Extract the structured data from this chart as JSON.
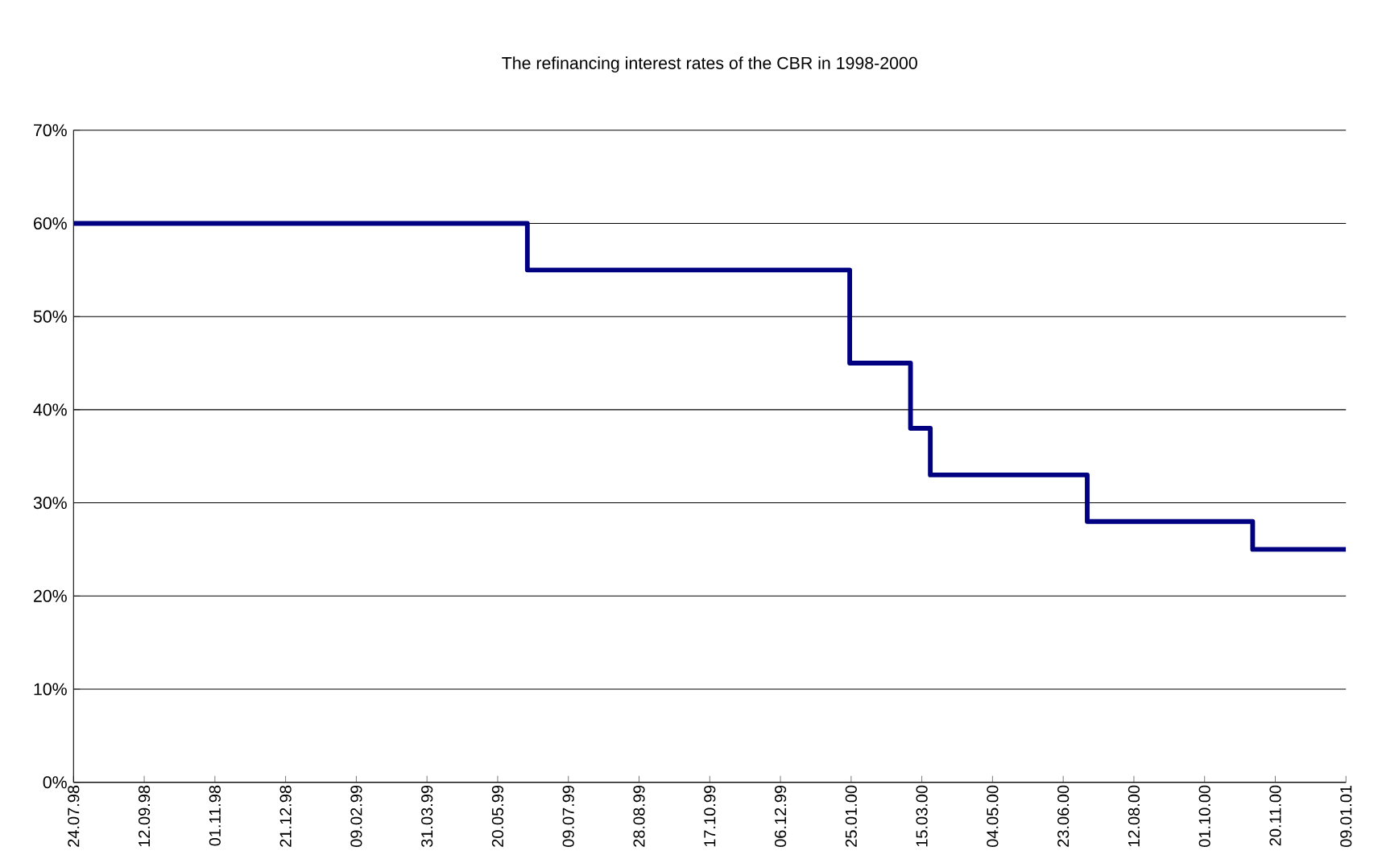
{
  "chart_data": {
    "type": "step",
    "title": "The refinancing interest rates of the CBR in 1998-2000",
    "x": [
      "1998-07-24",
      "1999-06-10",
      "2000-01-24",
      "2000-03-07",
      "2000-03-21",
      "2000-07-10",
      "2000-11-04",
      "2001-01-09"
    ],
    "series": [
      {
        "color": "#000080",
        "values": [
          60,
          55,
          45,
          38,
          33,
          28,
          25,
          25
        ]
      }
    ],
    "xlim": [
      "1998-07-24",
      "2001-01-09"
    ],
    "xticks": [
      {
        "value": "1998-07-24",
        "label": "24.07.98"
      },
      {
        "value": "1998-09-12",
        "label": "12.09.98"
      },
      {
        "value": "1998-11-01",
        "label": "01.11.98"
      },
      {
        "value": "1998-12-21",
        "label": "21.12.98"
      },
      {
        "value": "1999-02-09",
        "label": "09.02.99"
      },
      {
        "value": "1999-03-31",
        "label": "31.03.99"
      },
      {
        "value": "1999-05-20",
        "label": "20.05.99"
      },
      {
        "value": "1999-07-09",
        "label": "09.07.99"
      },
      {
        "value": "1999-08-28",
        "label": "28.08.99"
      },
      {
        "value": "1999-10-17",
        "label": "17.10.99"
      },
      {
        "value": "1999-12-06",
        "label": "06.12.99"
      },
      {
        "value": "2000-01-25",
        "label": "25.01.00"
      },
      {
        "value": "2000-03-15",
        "label": "15.03.00"
      },
      {
        "value": "2000-05-04",
        "label": "04.05.00"
      },
      {
        "value": "2000-06-23",
        "label": "23.06.00"
      },
      {
        "value": "2000-08-12",
        "label": "12.08.00"
      },
      {
        "value": "2000-10-01",
        "label": "01.10.00"
      },
      {
        "value": "2000-11-20",
        "label": "20.11.00"
      },
      {
        "value": "2001-01-09",
        "label": "09.01.01"
      }
    ],
    "ylim": [
      0,
      70
    ],
    "yticks": [
      {
        "value": 0,
        "label": "0%"
      },
      {
        "value": 10,
        "label": "10%"
      },
      {
        "value": 20,
        "label": "20%"
      },
      {
        "value": 30,
        "label": "30%"
      },
      {
        "value": 40,
        "label": "40%"
      },
      {
        "value": 50,
        "label": "50%"
      },
      {
        "value": 60,
        "label": "60%"
      },
      {
        "value": 70,
        "label": "70%"
      }
    ],
    "grid": "y",
    "line_style": "solid",
    "marker": "none",
    "legend": false
  }
}
